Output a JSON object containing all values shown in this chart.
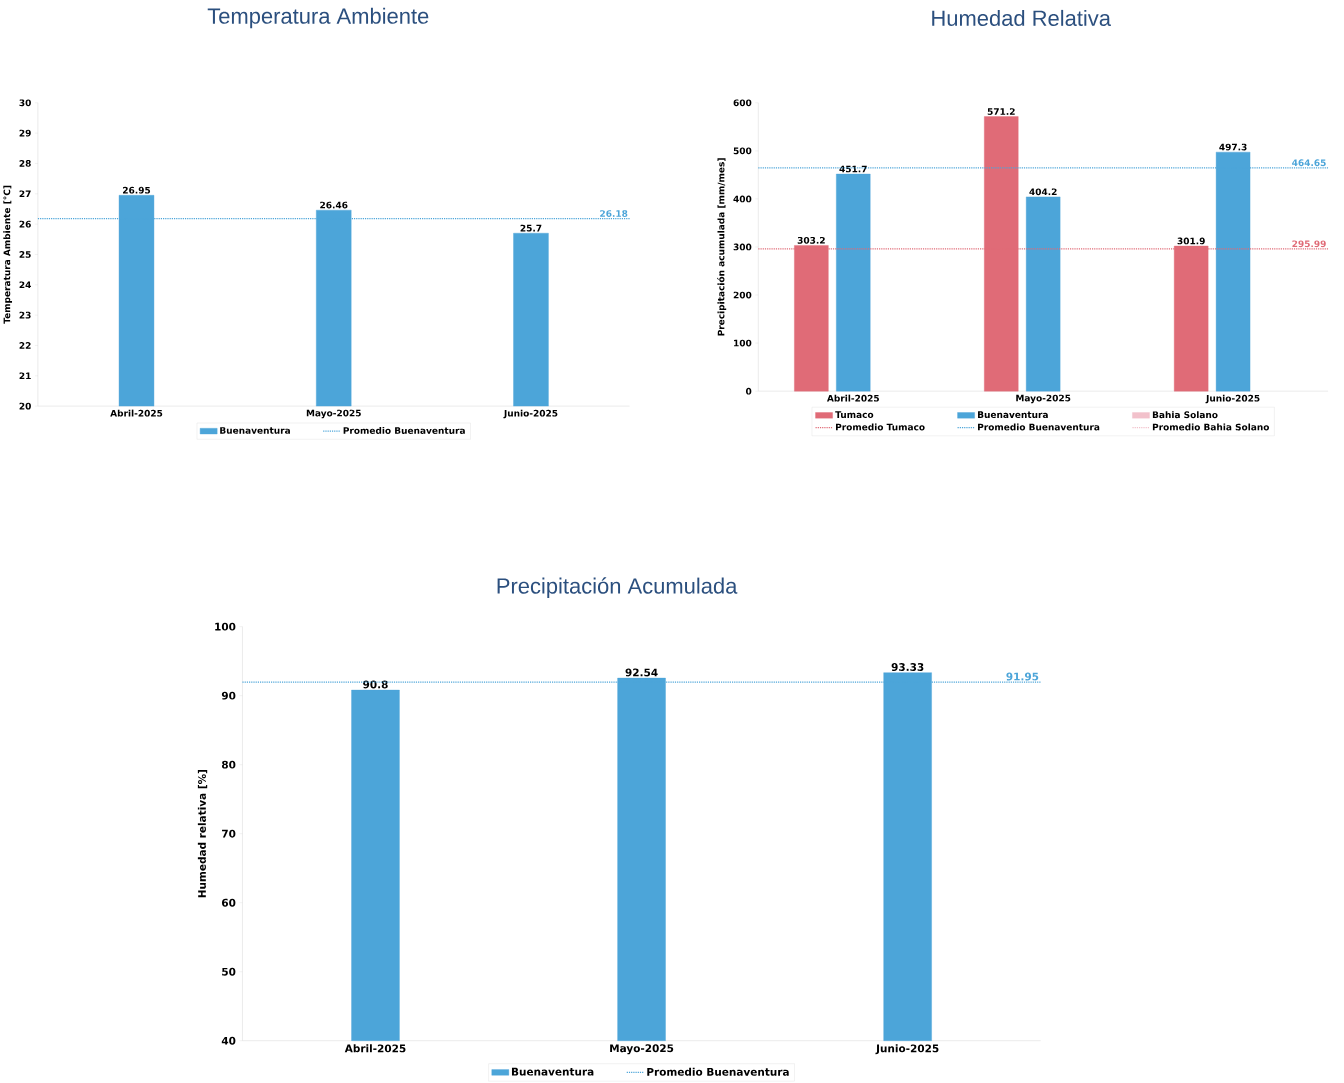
{
  "chart_data": [
    {
      "type": "bar",
      "title": "Temperatura Ambiente",
      "ylabel": "Temperatura Ambiente [°C]",
      "categories": [
        "Abril-2025",
        "Mayo-2025",
        "Junio-2025"
      ],
      "series": [
        {
          "name": "Buenaventura",
          "color": "#4ca5d9",
          "values": [
            26.95,
            26.46,
            25.7
          ]
        },
        {
          "name": "Promedio Buenaventura",
          "type": "line",
          "line_style": "dotted",
          "color": "#4ca5d9",
          "values": [
            null,
            null,
            null
          ]
        }
      ],
      "ylim": [
        20,
        30
      ],
      "yticks": [
        20,
        21,
        22,
        23,
        24,
        25,
        26,
        27,
        28,
        29,
        30
      ],
      "data_labels": true,
      "legend": "bottom",
      "ref_lines": [
        {
          "axis": "y",
          "value": 26.18,
          "label": "26.18",
          "color": "#4ca5d9",
          "line_style": "dotted"
        }
      ]
    },
    {
      "type": "bar",
      "title": "Humedad Relativa",
      "ylabel": "Precipitación acumulada [mm/mes]",
      "categories": [
        "Abril-2025",
        "Mayo-2025",
        "Junio-2025"
      ],
      "series": [
        {
          "name": "Tumaco",
          "color": "#e06b77",
          "values": [
            303.2,
            571.2,
            301.9
          ]
        },
        {
          "name": "Buenaventura",
          "color": "#4ca5d9",
          "values": [
            451.7,
            404.2,
            497.3
          ]
        },
        {
          "name": "Bahia Solano",
          "color": "#f2c1cb",
          "values": [
            null,
            null,
            null
          ]
        },
        {
          "name": "Promedio Tumaco",
          "type": "line",
          "line_style": "dotted",
          "color": "#e06b77",
          "values": [
            null,
            null,
            null
          ]
        },
        {
          "name": "Promedio Buenaventura",
          "type": "line",
          "line_style": "dotted",
          "color": "#4ca5d9",
          "values": [
            null,
            null,
            null
          ]
        },
        {
          "name": "Promedio Bahia Solano",
          "type": "line",
          "line_style": "dotted",
          "color": "#f2c1cb",
          "values": [
            null,
            null,
            null
          ]
        }
      ],
      "ylim": [
        0,
        600
      ],
      "yticks": [
        0,
        100,
        200,
        300,
        400,
        500,
        600
      ],
      "data_labels": true,
      "legend": "bottom",
      "ref_lines": [
        {
          "axis": "y",
          "value": 464.65,
          "label": "464.65",
          "color": "#4ca5d9",
          "line_style": "dotted"
        },
        {
          "axis": "y",
          "value": 295.99,
          "label": "295.99",
          "color": "#e06b77",
          "line_style": "dotted"
        }
      ]
    },
    {
      "type": "bar",
      "title": "Precipitación Acumulada",
      "ylabel": "Humedad relativa [%]",
      "categories": [
        "Abril-2025",
        "Mayo-2025",
        "Junio-2025"
      ],
      "series": [
        {
          "name": "Buenaventura",
          "color": "#4ca5d9",
          "values": [
            90.8,
            92.54,
            93.33
          ]
        },
        {
          "name": "Promedio Buenaventura",
          "type": "line",
          "line_style": "dotted",
          "color": "#4ca5d9",
          "values": [
            null,
            null,
            null
          ]
        }
      ],
      "ylim": [
        40,
        100
      ],
      "yticks": [
        40,
        50,
        60,
        70,
        80,
        90,
        100
      ],
      "data_labels": true,
      "legend": "bottom",
      "ref_lines": [
        {
          "axis": "y",
          "value": 91.95,
          "label": "91.95",
          "color": "#4ca5d9",
          "line_style": "dotted"
        }
      ]
    }
  ]
}
